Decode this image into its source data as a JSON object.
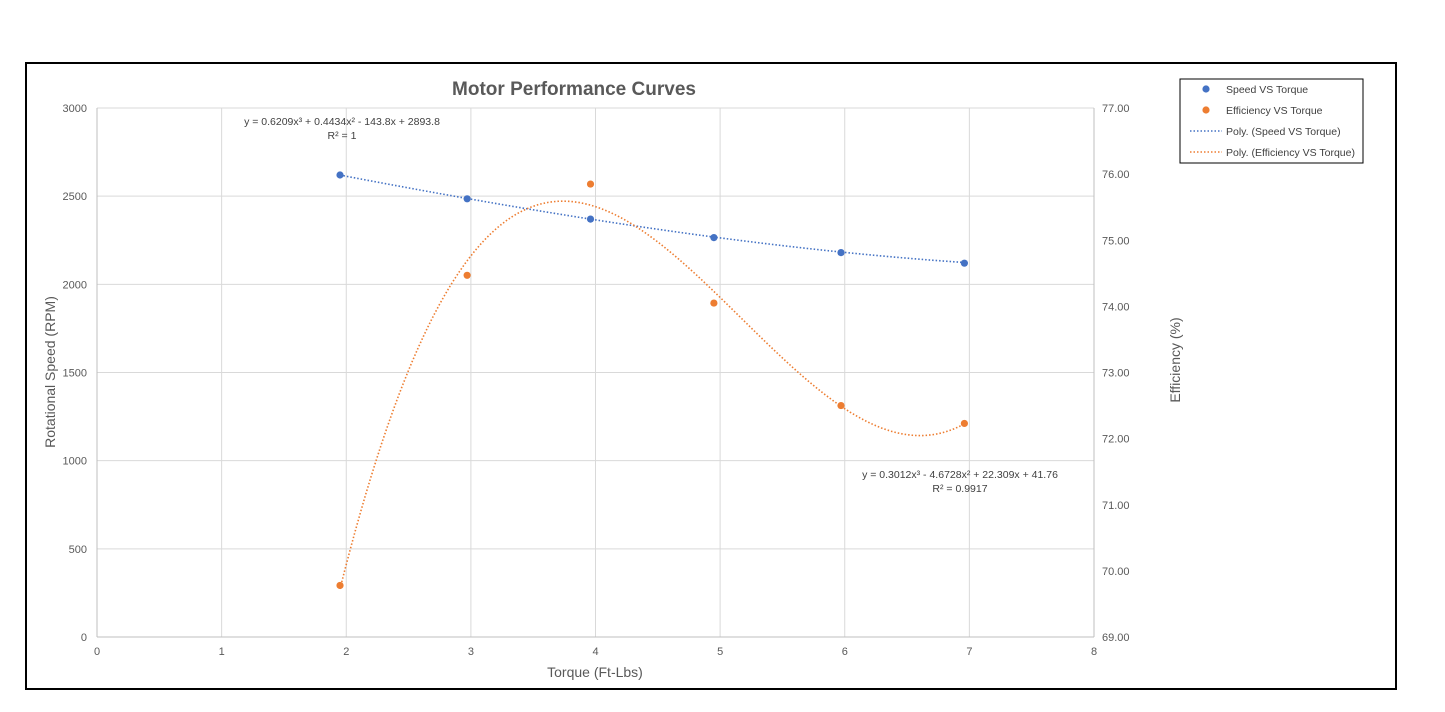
{
  "chart_data": {
    "type": "scatter",
    "title": "Motor Performance Curves",
    "xlabel": "Torque (Ft-Lbs)",
    "ylabel": "Rotational Speed (RPM)",
    "y2label": "Efficiency (%)",
    "xlim": [
      0,
      8
    ],
    "ylim": [
      0,
      3000
    ],
    "y2lim": [
      69,
      77
    ],
    "x_ticks": [
      "0",
      "1",
      "2",
      "3",
      "4",
      "5",
      "6",
      "7",
      "8"
    ],
    "y_ticks": [
      "0",
      "500",
      "1000",
      "1500",
      "2000",
      "2500",
      "3000"
    ],
    "y2_ticks": [
      "69.00",
      "70.00",
      "71.00",
      "72.00",
      "73.00",
      "74.00",
      "75.00",
      "76.00",
      "77.00"
    ],
    "grid": true,
    "legend_position": "top-right",
    "legend": [
      "Speed VS Torque",
      "Efficiency VS Torque",
      "Poly. (Speed VS Torque)",
      "Poly. (Efficiency VS Torque)"
    ],
    "series": [
      {
        "name": "Speed VS Torque",
        "axis": "left",
        "color": "#4472c4",
        "x": [
          1.95,
          2.97,
          3.96,
          4.95,
          5.97,
          6.96
        ],
        "y": [
          2620,
          2485,
          2370,
          2265,
          2180,
          2120
        ]
      },
      {
        "name": "Efficiency VS Torque",
        "axis": "right",
        "color": "#ed7d31",
        "x": [
          1.95,
          2.97,
          3.96,
          4.95,
          5.97,
          6.96
        ],
        "y": [
          69.78,
          74.47,
          75.85,
          74.05,
          72.5,
          72.23
        ]
      }
    ],
    "trendlines": [
      {
        "name": "Poly. (Speed VS Torque)",
        "axis": "left",
        "color": "#4472c4",
        "coefficients": [
          0.6209,
          0.4434,
          -143.8,
          2893.8
        ],
        "x_range": [
          1.95,
          6.96
        ],
        "equation": "y = 0.6209x³ + 0.4434x² - 143.8x + 2893.8",
        "r2": "R² = 1"
      },
      {
        "name": "Poly. (Efficiency VS Torque)",
        "axis": "right",
        "color": "#ed7d31",
        "coefficients": [
          0.3012,
          -4.6728,
          22.309,
          41.76
        ],
        "x_range": [
          1.95,
          6.96
        ],
        "equation": "y = 0.3012x³ - 4.6728x² + 22.309x + 41.76",
        "r2": "R² = 0.9917"
      }
    ]
  }
}
